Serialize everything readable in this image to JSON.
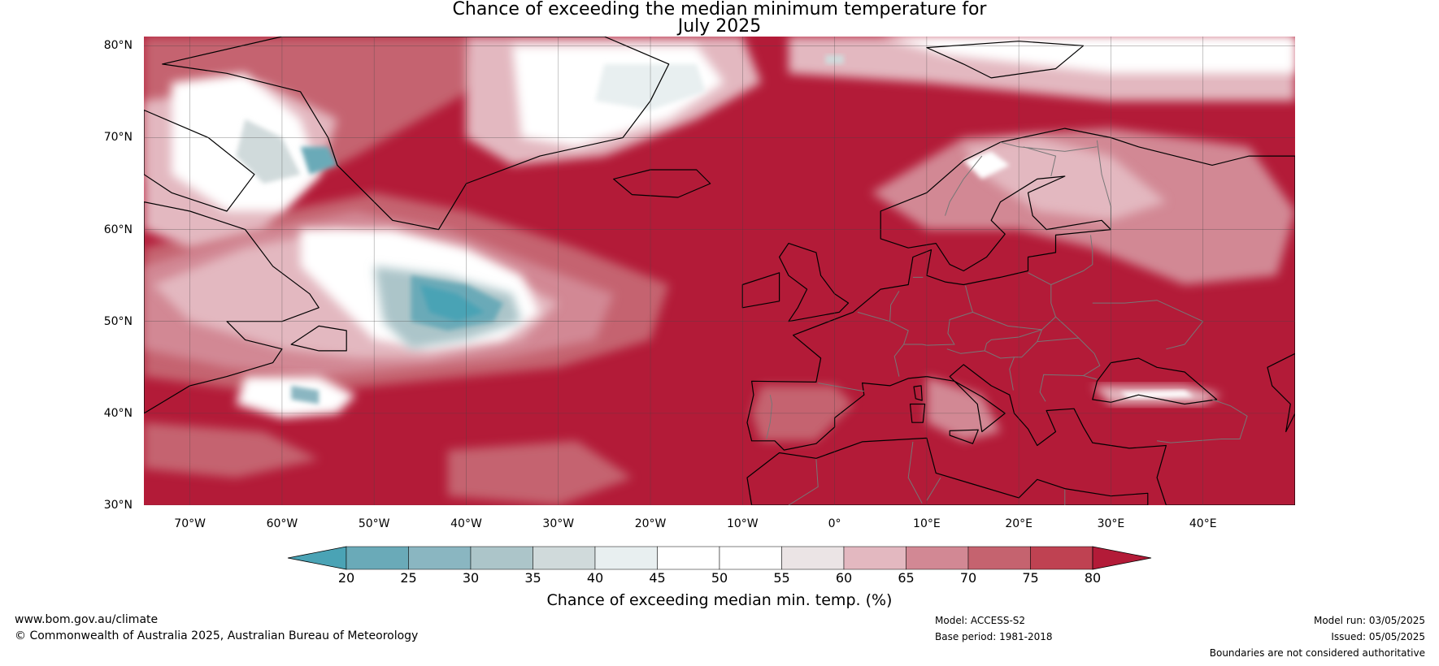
{
  "title": {
    "line1": "Chance of exceeding the median minimum temperature for",
    "line2": "July 2025"
  },
  "map": {
    "lon_range": [
      -75,
      50
    ],
    "lat_range": [
      30,
      81
    ],
    "lat_labels": [
      "80°N",
      "70°N",
      "60°N",
      "50°N",
      "40°N",
      "30°N"
    ],
    "lat_values": [
      80,
      70,
      60,
      50,
      40,
      30
    ],
    "lon_labels": [
      "70°W",
      "60°W",
      "50°W",
      "40°W",
      "30°W",
      "20°W",
      "10°W",
      "0°",
      "10°E",
      "20°E",
      "30°E",
      "40°E"
    ],
    "lon_values": [
      -70,
      -60,
      -50,
      -40,
      -30,
      -20,
      -10,
      0,
      10,
      20,
      30,
      40
    ],
    "background_color": "#b31b38",
    "coastline_color": "#000000",
    "border_color": "#777777",
    "gridline_color": "#444444"
  },
  "colorbar": {
    "ticks": [
      "20",
      "25",
      "30",
      "35",
      "40",
      "45",
      "50",
      "55",
      "60",
      "65",
      "70",
      "75",
      "80"
    ],
    "colors": [
      "#4aa3b5",
      "#6aaab8",
      "#8ab6c1",
      "#acc5c9",
      "#d0dadb",
      "#e8eff0",
      "#ffffff",
      "#ffffff",
      "#ebe4e5",
      "#e3b8c0",
      "#d28894",
      "#c5636f",
      "#bf4252",
      "#b31b38"
    ],
    "label": "Chance of exceeding median min. temp. (%)"
  },
  "footer": {
    "url": "www.bom.gov.au/climate",
    "copyright": "© Commonwealth of Australia 2025, Australian Bureau of Meteorology",
    "model": "Model: ACCESS-S2",
    "base_period": "Base period: 1981-2018",
    "model_run": "Model run: 03/05/2025",
    "issued": "Issued: 05/05/2025",
    "disclaimer": "Boundaries are not considered authoritative"
  }
}
